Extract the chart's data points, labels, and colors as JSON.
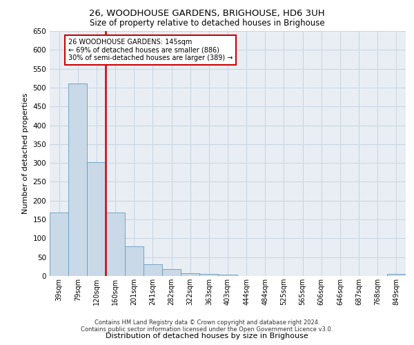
{
  "title": "26, WOODHOUSE GARDENS, BRIGHOUSE, HD6 3UH",
  "subtitle": "Size of property relative to detached houses in Brighouse",
  "xlabel": "Distribution of detached houses by size in Brighouse",
  "ylabel": "Number of detached properties",
  "bar_values": [
    168,
    510,
    303,
    168,
    78,
    32,
    18,
    7,
    5,
    3,
    0,
    0,
    0,
    0,
    0,
    0,
    0,
    0,
    5
  ],
  "bar_labels": [
    "39sqm",
    "79sqm",
    "120sqm",
    "160sqm",
    "201sqm",
    "241sqm",
    "282sqm",
    "322sqm",
    "363sqm",
    "403sqm",
    "444sqm",
    "484sqm",
    "525sqm",
    "565sqm",
    "606sqm",
    "646sqm",
    "687sqm",
    "768sqm",
    "849sqm"
  ],
  "bar_color": "#c9d9e8",
  "bar_edge_color": "#6699bb",
  "grid_color": "#c8d4e0",
  "background_color": "#e8eef4",
  "vline_x_index": 2,
  "vline_color": "#cc0000",
  "annotation_text": "26 WOODHOUSE GARDENS: 145sqm\n← 69% of detached houses are smaller (886)\n30% of semi-detached houses are larger (389) →",
  "annotation_box_color": "#ffffff",
  "annotation_box_edge_color": "#cc0000",
  "ylim": [
    0,
    650
  ],
  "yticks": [
    0,
    50,
    100,
    150,
    200,
    250,
    300,
    350,
    400,
    450,
    500,
    550,
    600,
    650
  ],
  "footer_line1": "Contains HM Land Registry data © Crown copyright and database right 2024.",
  "footer_line2": "Contains public sector information licensed under the Open Government Licence v3.0."
}
